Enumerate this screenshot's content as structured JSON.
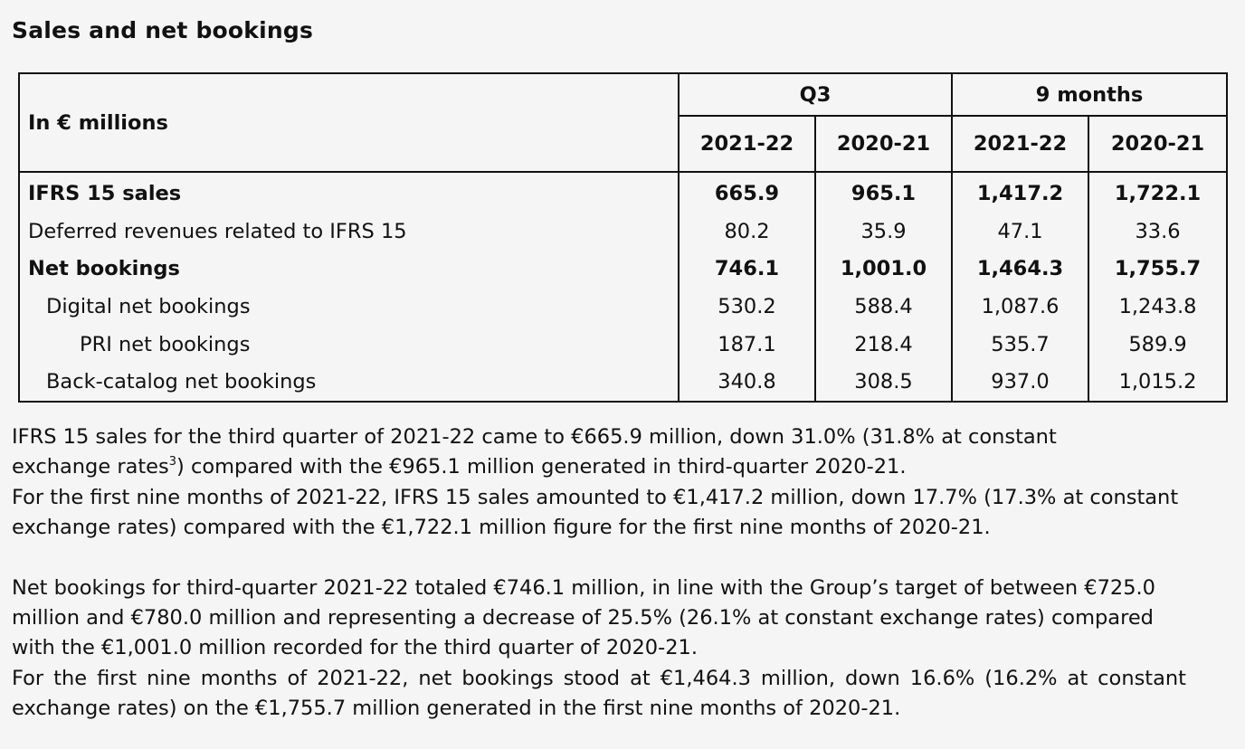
{
  "title": "Sales and net bookings",
  "table": {
    "unit_label": "In € millions",
    "groups": [
      "Q3",
      "9 months"
    ],
    "years": [
      "2021-22",
      "2020-21",
      "2021-22",
      "2020-21"
    ],
    "rows": [
      {
        "label": "IFRS 15 sales",
        "values": [
          "665.9",
          "965.1",
          "1,417.2",
          "1,722.1"
        ]
      },
      {
        "label": "Deferred revenues related to IFRS 15",
        "values": [
          "80.2",
          "35.9",
          "47.1",
          "33.6"
        ]
      },
      {
        "label": "Net bookings",
        "values": [
          "746.1",
          "1,001.0",
          "1,464.3",
          "1,755.7"
        ]
      },
      {
        "label": "Digital net bookings",
        "values": [
          "530.2",
          "588.4",
          "1,087.6",
          "1,243.8"
        ]
      },
      {
        "label": "PRI net bookings",
        "values": [
          "187.1",
          "218.4",
          "535.7",
          "589.9"
        ]
      },
      {
        "label": "Back-catalog net bookings",
        "values": [
          "340.8",
          "308.5",
          "937.0",
          "1,015.2"
        ]
      }
    ]
  },
  "paragraphs": {
    "p1_line1": "IFRS 15 sales for the third quarter of 2021-22 came to €665.9 million, down 31.0% (31.8% at constant",
    "p1_line2_before": "exchange rates",
    "p1_footnote": "3",
    "p1_line2_after": ") compared with the €965.1 million generated in third-quarter 2020-21.",
    "p2": "For the first nine months of 2021-22, IFRS 15 sales amounted to €1,417.2 million, down 17.7% (17.3% at constant exchange rates) compared with the €1,722.1 million figure for the first nine months of 2020-21.",
    "p3": "Net bookings for third-quarter 2021-22 totaled €746.1 million, in line with the Group’s target of between €725.0 million and €780.0 million and representing a decrease of 25.5% (26.1% at constant exchange rates) compared with the €1,001.0 million recorded for the third quarter of 2020-21.",
    "p4": "For the first nine months of 2021-22, net bookings stood at €1,464.3 million, down 16.6% (16.2% at constant exchange rates) on the €1,755.7 million generated in the first nine months of 2020-21."
  }
}
